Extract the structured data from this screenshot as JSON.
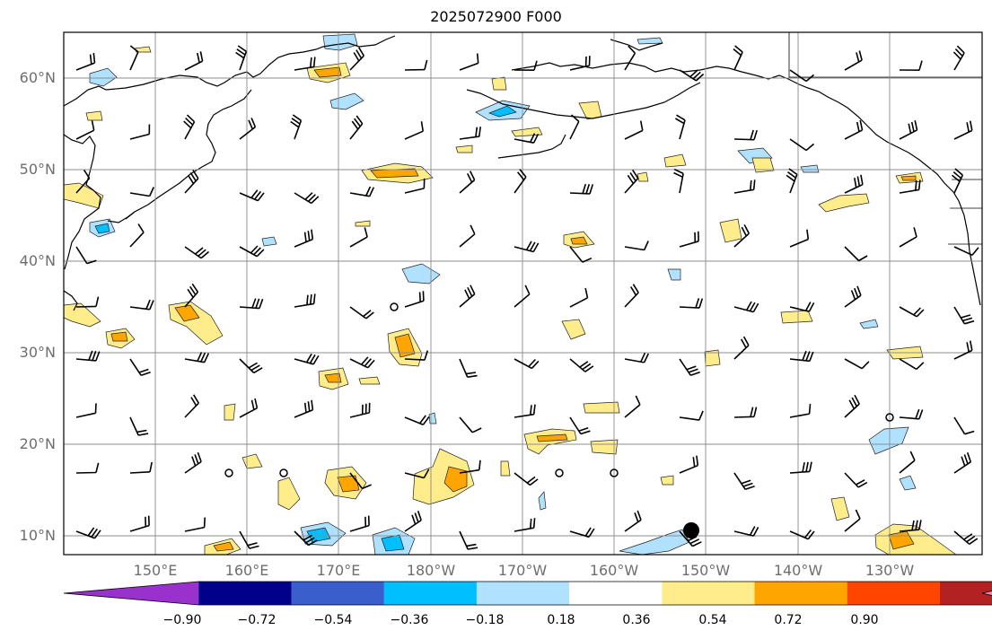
{
  "title": "2025072900 F000",
  "lat_labels": [
    "60°N",
    "50°N",
    "40°N",
    "30°N",
    "20°N",
    "10°N"
  ],
  "lon_labels": [
    "150°E",
    "160°E",
    "170°E",
    "180°W",
    "170°W",
    "160°W",
    "150°W",
    "140°W",
    "130°W"
  ],
  "colorbar": {
    "ticks": [
      "−0.90",
      "−0.72",
      "−0.54",
      "−0.36",
      "−0.18",
      "0.18",
      "0.36",
      "0.54",
      "0.72",
      "0.90"
    ],
    "colors": [
      "#9932cc",
      "#00008b",
      "#3a5fcd",
      "#00bfff",
      "#b0e2ff",
      "#ffffff",
      "#ffec8b",
      "#ffa500",
      "#ff4500",
      "#b22222",
      "#ff82ab"
    ]
  },
  "map": {
    "extent": {
      "lon_min": 140,
      "lon_max": 240,
      "lat_min": 8,
      "lat_max": 65
    },
    "storm_marker": {
      "lon": 208,
      "lat": 10.8
    }
  }
}
